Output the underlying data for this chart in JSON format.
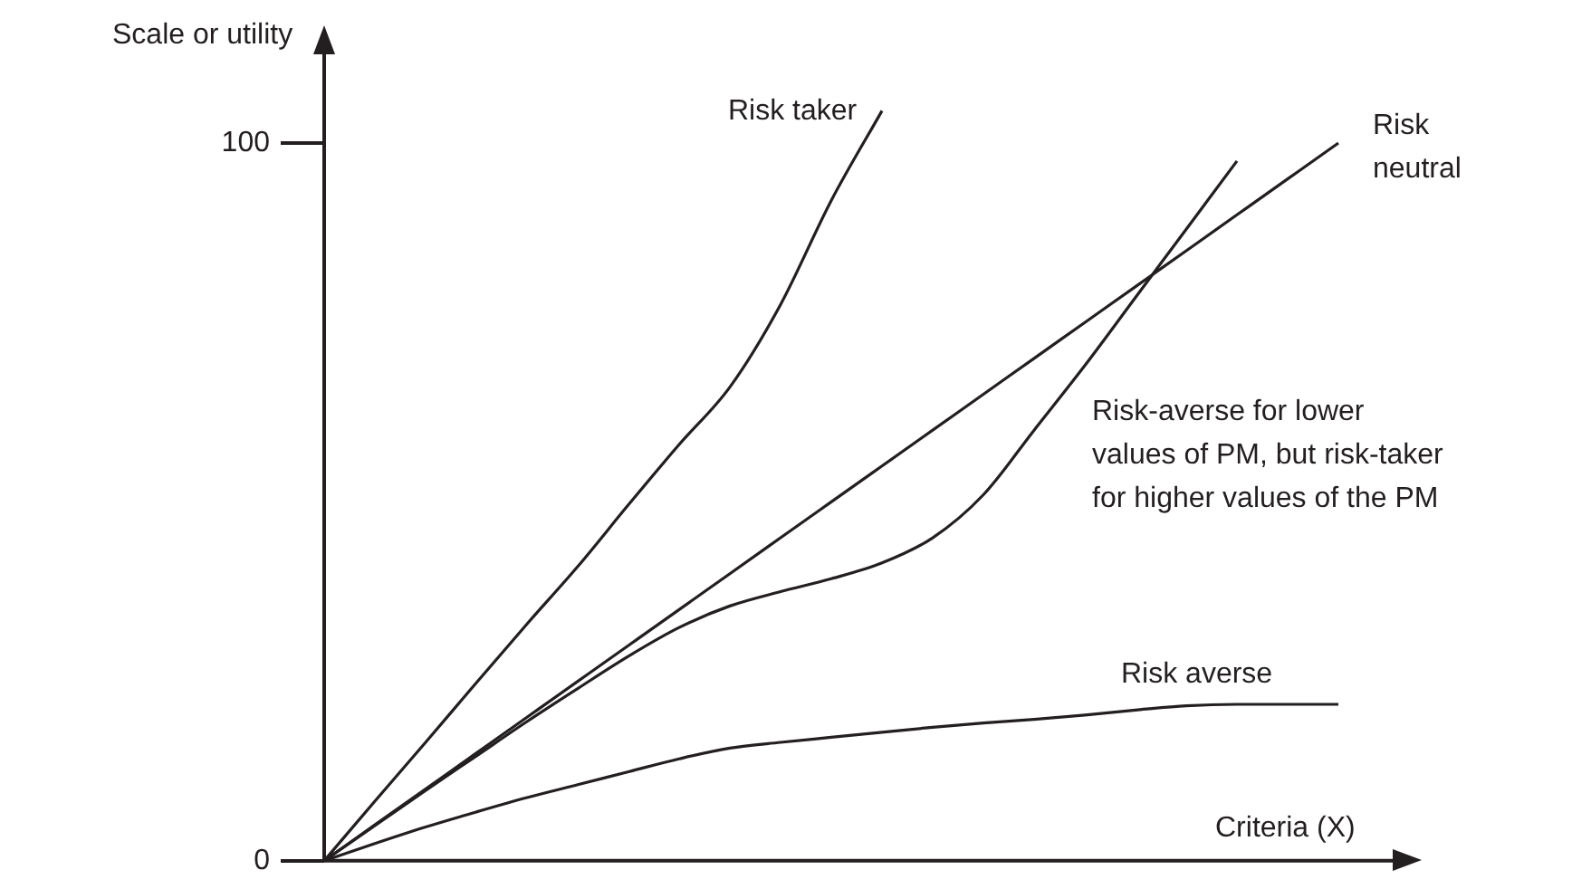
{
  "chart_data": {
    "type": "line",
    "xlabel": "Criteria (X)",
    "ylabel": "Scale or utility",
    "categories": [
      null,
      null,
      null,
      null,
      null,
      null,
      null,
      null,
      null,
      null,
      null,
      null,
      null,
      null,
      null,
      null,
      null,
      null,
      null,
      null,
      null,
      null
    ],
    "ylim": [
      0,
      116
    ],
    "yticks": [
      0,
      100
    ],
    "tick_labels": "y",
    "grid": false,
    "legend": false,
    "marker": "none",
    "line_style": "solid",
    "series": [
      {
        "name": "Risk taker",
        "color": "#231f20",
        "values": [
          0,
          8.3,
          16.5,
          24.8,
          33,
          41,
          49.6,
          58,
          66,
          77.5,
          92,
          104.5,
          null,
          null,
          null,
          null,
          null,
          null,
          null,
          null,
          null,
          null
        ]
      },
      {
        "name": "Risk\nneutral",
        "color": "#231f20",
        "values": [
          0,
          5,
          10,
          15,
          20,
          25,
          30,
          35,
          40,
          45,
          50,
          55,
          60,
          65,
          70,
          75,
          80,
          85,
          90,
          95,
          100,
          null
        ]
      },
      {
        "name": "Risk-averse for lower\nvalues of PM, but risk-taker\nfor higher values of the PM",
        "color": "#231f20",
        "values": [
          0,
          4.9,
          9.8,
          14.6,
          19.4,
          24,
          28.5,
          32.5,
          35.5,
          37.5,
          39.3,
          41.5,
          45,
          51,
          60,
          69,
          78.5,
          88,
          97.5,
          null,
          null,
          null
        ]
      },
      {
        "name": "Risk averse",
        "color": "#231f20",
        "values": [
          0,
          2.4,
          4.7,
          6.8,
          8.8,
          10.6,
          12.4,
          14.2,
          15.7,
          16.5,
          17.2,
          17.9,
          18.6,
          19.2,
          19.7,
          20.3,
          21,
          21.6,
          21.8,
          21.8,
          21.8,
          null
        ]
      }
    ]
  }
}
